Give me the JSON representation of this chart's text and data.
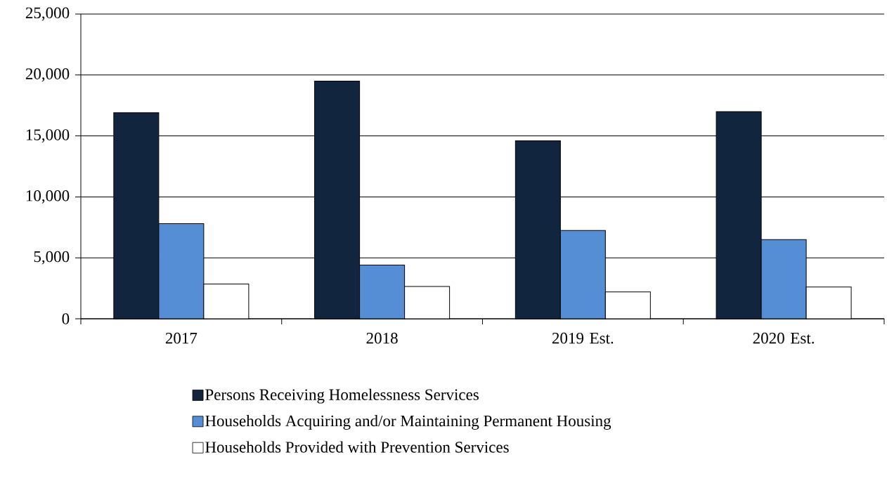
{
  "chart_data": {
    "type": "bar",
    "categories": [
      "2017",
      "2018",
      "2019 Est.",
      "2020 Est."
    ],
    "series": [
      {
        "name": "Persons Receiving Homelessness Services",
        "color": "#12253f",
        "values": [
          16900,
          19500,
          14600,
          17000
        ]
      },
      {
        "name": "Households Acquiring and/or Maintaining Permanent Housing",
        "color": "#558ed5",
        "values": [
          7800,
          4400,
          7250,
          6500
        ]
      },
      {
        "name": "Households Provided with Prevention Services",
        "color": "#ffffff",
        "values": [
          2850,
          2650,
          2200,
          2600
        ]
      }
    ],
    "ylim": [
      0,
      25000
    ],
    "yticks": [
      {
        "value": 0,
        "label": "0"
      },
      {
        "value": 5000,
        "label": "5,000"
      },
      {
        "value": 10000,
        "label": "10,000"
      },
      {
        "value": 15000,
        "label": "15,000"
      },
      {
        "value": 20000,
        "label": "20,000"
      },
      {
        "value": 25000,
        "label": "25,000"
      }
    ],
    "grid": "y",
    "legend": "bottom"
  }
}
